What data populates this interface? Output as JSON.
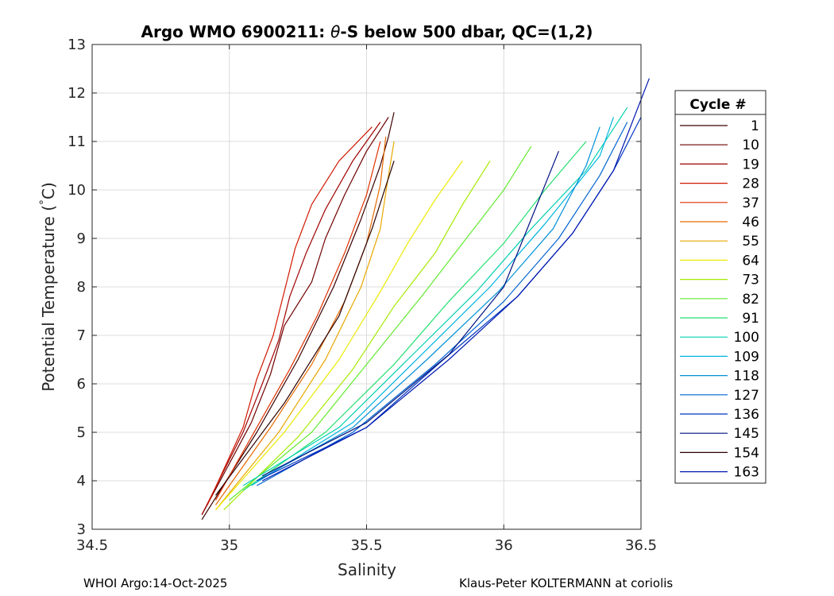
{
  "chart_data": {
    "type": "line",
    "title": "Argo WMO 6900211: θ-S below 500 dbar,  QC=(1,2)",
    "title_parts": {
      "prefix": "Argo WMO 6900211: ",
      "theta": "θ",
      "suffix": "-S below 500 dbar,  QC=(1,2)"
    },
    "xlabel": "Salinity",
    "ylabel": "Potential Temperature ( °C)",
    "ylabel_parts": {
      "main": "Potential Temperature (",
      "deg": "°",
      "unit": "C)"
    },
    "xlim": [
      34.5,
      36.5
    ],
    "ylim": [
      3,
      13
    ],
    "xticks": [
      34.5,
      35,
      35.5,
      36,
      36.5
    ],
    "xtick_labels": [
      "34.5",
      "35",
      "35.5",
      "36",
      "36.5"
    ],
    "yticks": [
      3,
      4,
      5,
      6,
      7,
      8,
      9,
      10,
      11,
      12,
      13
    ],
    "ytick_labels": [
      "3",
      "4",
      "5",
      "6",
      "7",
      "8",
      "9",
      "10",
      "11",
      "12",
      "13"
    ],
    "grid": true,
    "legend_position": "right-outside",
    "legend_title": "Cycle #",
    "legend": [
      {
        "label": "1",
        "color": "#3a0000"
      },
      {
        "label": "10",
        "color": "#6e0000"
      },
      {
        "label": "19",
        "color": "#a00000"
      },
      {
        "label": "28",
        "color": "#d01800"
      },
      {
        "label": "37",
        "color": "#e03000"
      },
      {
        "label": "46",
        "color": "#e86a00"
      },
      {
        "label": "55",
        "color": "#e8a800"
      },
      {
        "label": "64",
        "color": "#eaea00"
      },
      {
        "label": "73",
        "color": "#a6ea00"
      },
      {
        "label": "82",
        "color": "#62ea30"
      },
      {
        "label": "91",
        "color": "#22e070"
      },
      {
        "label": "100",
        "color": "#00d0b0"
      },
      {
        "label": "109",
        "color": "#00b4e0"
      },
      {
        "label": "118",
        "color": "#0090d8"
      },
      {
        "label": "127",
        "color": "#0064d0"
      },
      {
        "label": "136",
        "color": "#0036c0"
      },
      {
        "label": "145",
        "color": "#001080"
      },
      {
        "label": "154",
        "color": "#2a0000"
      },
      {
        "label": "163",
        "color": "#0018b0"
      }
    ],
    "series": [
      {
        "name": "1",
        "color": "#3a0000",
        "s": [
          34.9,
          35.1,
          35.25,
          35.38,
          35.48,
          35.55,
          35.58,
          35.6
        ],
        "t": [
          3.2,
          5.0,
          6.5,
          8.0,
          9.4,
          10.5,
          11.1,
          11.6
        ]
      },
      {
        "name": "10",
        "color": "#6e0000",
        "s": [
          34.9,
          35.08,
          35.15,
          35.2,
          35.3,
          35.35,
          35.42,
          35.5,
          35.58
        ],
        "t": [
          3.3,
          5.2,
          6.2,
          7.2,
          8.1,
          9.0,
          9.9,
          10.8,
          11.5
        ]
      },
      {
        "name": "19",
        "color": "#a00000",
        "s": [
          34.9,
          35.05,
          35.12,
          35.18,
          35.22,
          35.28,
          35.35,
          35.45,
          35.55
        ],
        "t": [
          3.3,
          5.0,
          6.0,
          6.9,
          7.8,
          8.7,
          9.6,
          10.6,
          11.4
        ]
      },
      {
        "name": "28",
        "color": "#d01800",
        "s": [
          34.92,
          35.05,
          35.1,
          35.16,
          35.2,
          35.24,
          35.3,
          35.4,
          35.52
        ],
        "t": [
          3.5,
          5.1,
          6.1,
          7.0,
          7.9,
          8.8,
          9.7,
          10.6,
          11.3
        ]
      },
      {
        "name": "37",
        "color": "#e03000",
        "s": [
          34.95,
          35.1,
          35.22,
          35.32,
          35.42,
          35.5,
          35.55
        ],
        "t": [
          3.6,
          5.1,
          6.3,
          7.4,
          8.7,
          9.9,
          11.0
        ]
      },
      {
        "name": "46",
        "color": "#e86a00",
        "s": [
          34.95,
          35.15,
          35.3,
          35.42,
          35.5,
          35.55,
          35.57
        ],
        "t": [
          3.5,
          5.1,
          6.4,
          7.7,
          8.9,
          10.1,
          11.1
        ]
      },
      {
        "name": "55",
        "color": "#e8a800",
        "s": [
          34.95,
          35.18,
          35.35,
          35.48,
          35.55,
          35.58,
          35.6
        ],
        "t": [
          3.4,
          5.0,
          6.5,
          8.0,
          9.2,
          10.3,
          11.0
        ]
      },
      {
        "name": "64",
        "color": "#eaea00",
        "s": [
          34.95,
          35.2,
          35.4,
          35.55,
          35.65,
          35.75,
          35.85
        ],
        "t": [
          3.4,
          5.0,
          6.5,
          7.9,
          8.9,
          9.8,
          10.6
        ]
      },
      {
        "name": "73",
        "color": "#a6ea00",
        "s": [
          34.98,
          35.25,
          35.45,
          35.6,
          35.75,
          35.85,
          35.95
        ],
        "t": [
          3.4,
          4.9,
          6.3,
          7.6,
          8.7,
          9.7,
          10.6
        ]
      },
      {
        "name": "82",
        "color": "#62ea30",
        "s": [
          35.0,
          35.3,
          35.5,
          35.7,
          35.85,
          36.0,
          36.1
        ],
        "t": [
          3.6,
          5.0,
          6.4,
          7.8,
          8.9,
          10.0,
          10.9
        ]
      },
      {
        "name": "91",
        "color": "#22e070",
        "s": [
          35.05,
          35.35,
          35.6,
          35.8,
          36.0,
          36.15,
          36.3
        ],
        "t": [
          3.8,
          5.0,
          6.4,
          7.7,
          8.9,
          10.0,
          11.0
        ]
      },
      {
        "name": "100",
        "color": "#00d0b0",
        "s": [
          35.05,
          35.4,
          35.65,
          35.9,
          36.1,
          36.3,
          36.45
        ],
        "t": [
          3.9,
          5.1,
          6.5,
          7.9,
          9.2,
          10.4,
          11.7
        ]
      },
      {
        "name": "109",
        "color": "#00b4e0",
        "s": [
          35.08,
          35.45,
          35.7,
          35.95,
          36.15,
          36.35,
          36.4
        ],
        "t": [
          3.9,
          5.2,
          6.6,
          8.0,
          9.3,
          10.7,
          11.5
        ]
      },
      {
        "name": "118",
        "color": "#0090d8",
        "s": [
          35.1,
          35.45,
          35.72,
          35.98,
          36.18,
          36.3,
          36.35
        ],
        "t": [
          4.0,
          5.1,
          6.5,
          7.9,
          9.2,
          10.5,
          11.3
        ]
      },
      {
        "name": "127",
        "color": "#0064d0",
        "s": [
          35.1,
          35.45,
          35.75,
          36.0,
          36.2,
          36.35,
          36.45
        ],
        "t": [
          3.9,
          5.0,
          6.4,
          7.7,
          9.0,
          10.3,
          11.4
        ]
      },
      {
        "name": "136",
        "color": "#0036c0",
        "s": [
          35.1,
          35.5,
          35.78,
          36.05,
          36.25,
          36.4,
          36.5
        ],
        "t": [
          4.0,
          5.1,
          6.5,
          7.8,
          9.1,
          10.4,
          11.5
        ]
      },
      {
        "name": "145",
        "color": "#001080",
        "s": [
          35.12,
          35.5,
          35.8,
          36.0,
          36.1,
          36.2
        ],
        "t": [
          4.1,
          5.2,
          6.6,
          8.0,
          9.4,
          10.8
        ]
      },
      {
        "name": "154",
        "color": "#2a0000",
        "s": [
          34.95,
          35.2,
          35.4,
          35.52,
          35.6
        ],
        "t": [
          3.7,
          5.6,
          7.4,
          9.2,
          10.6
        ]
      },
      {
        "name": "163",
        "color": "#0018b0",
        "s": [
          35.12,
          35.5,
          35.8,
          36.05,
          36.25,
          36.4,
          36.53
        ],
        "t": [
          4.0,
          5.1,
          6.5,
          7.8,
          9.1,
          10.4,
          12.3
        ]
      }
    ]
  },
  "footer": {
    "left": "WHOI Argo:14-Oct-2025",
    "right": "Klaus-Peter KOLTERMANN at coriolis"
  }
}
